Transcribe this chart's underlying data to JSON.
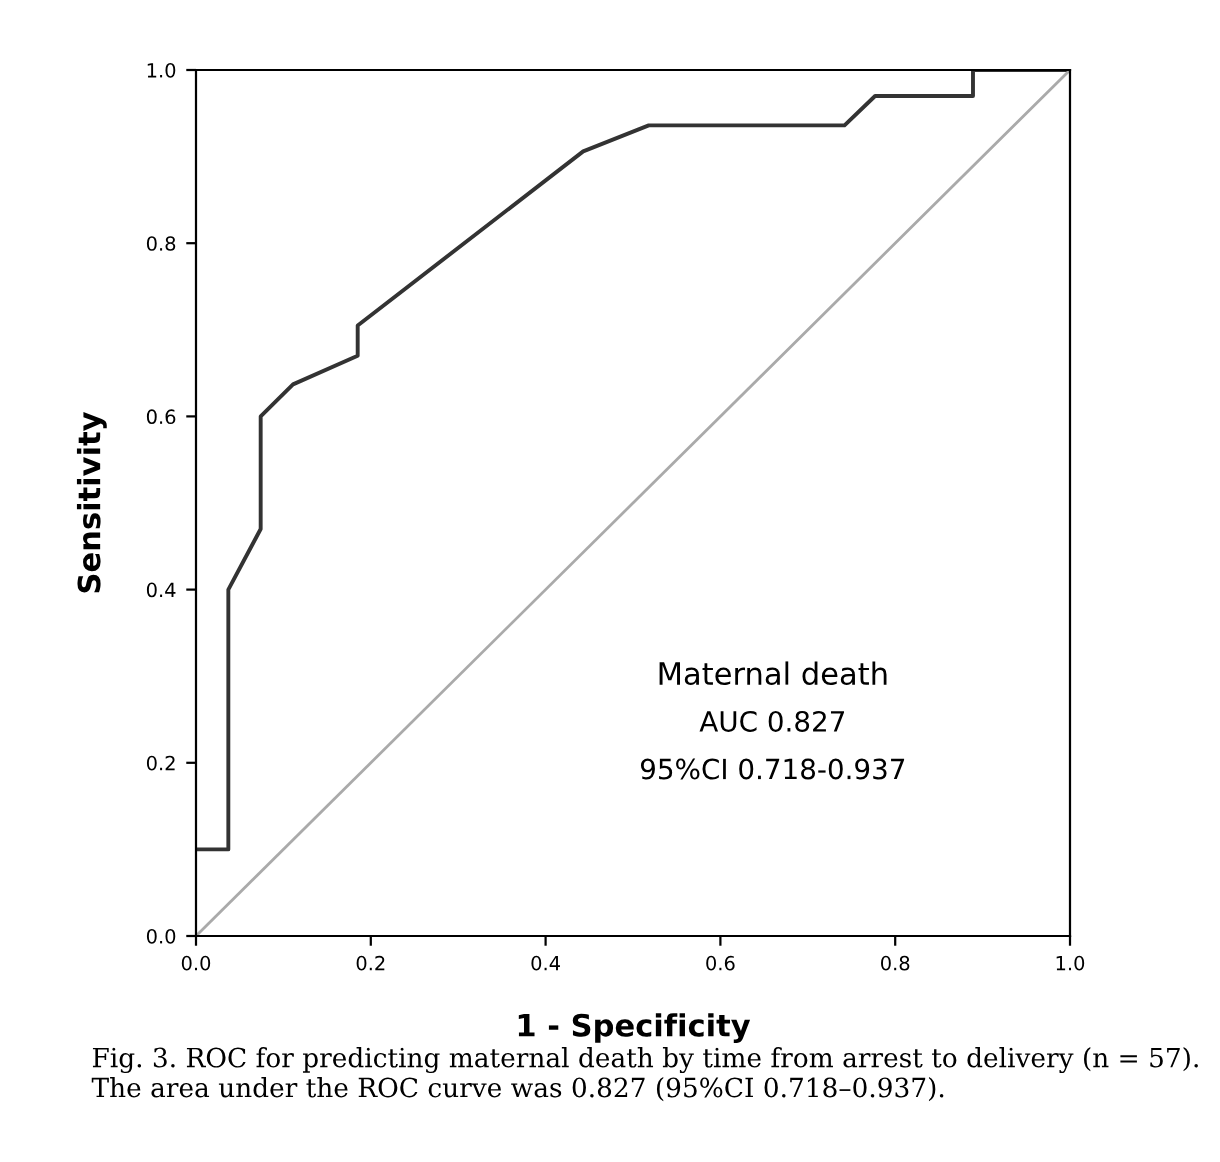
{
  "chart_data": {
    "type": "line",
    "xlabel": "1 - Specificity",
    "ylabel": "Sensitivity",
    "xlim": [
      0,
      1
    ],
    "ylim": [
      0,
      1
    ],
    "xticks": [
      {
        "value": 0,
        "label": "0.0"
      },
      {
        "value": 0.2,
        "label": "0.2"
      },
      {
        "value": 0.4,
        "label": "0.4"
      },
      {
        "value": 0.6,
        "label": "0.6"
      },
      {
        "value": 0.8,
        "label": "0.8"
      },
      {
        "value": 1,
        "label": "1.0"
      }
    ],
    "yticks": [
      {
        "value": 0,
        "label": "0.0"
      },
      {
        "value": 0.2,
        "label": "0.2"
      },
      {
        "value": 0.4,
        "label": "0.4"
      },
      {
        "value": 0.6,
        "label": "0.6"
      },
      {
        "value": 0.8,
        "label": "0.8"
      },
      {
        "value": 1,
        "label": "1.0"
      }
    ],
    "grid": false,
    "legend": false,
    "marker": "none",
    "series": [
      {
        "color": "#333333",
        "x": [
          0,
          0.037,
          0.037,
          0.074,
          0.074,
          0.111,
          0.185,
          0.185,
          0.443,
          0.518,
          0.742,
          0.777,
          0.889,
          0.889,
          1.0
        ],
        "values": [
          0.1,
          0.1,
          0.4,
          0.47,
          0.6,
          0.637,
          0.67,
          0.705,
          0.906,
          0.936,
          0.936,
          0.97,
          0.97,
          1.0,
          1.0
        ]
      },
      {
        "color": "#aaaaaa",
        "x": [
          0,
          1
        ],
        "values": [
          0,
          1
        ]
      }
    ],
    "annotations": [
      "Maternal death",
      "AUC 0.827",
      "95%CI 0.718-0.937",
      "Fig. 3. ROC for predicting maternal death by time from arrest to delivery (n = 57). The area under the ROC curve was 0.827 (95%CI 0.718–0.937)."
    ]
  }
}
